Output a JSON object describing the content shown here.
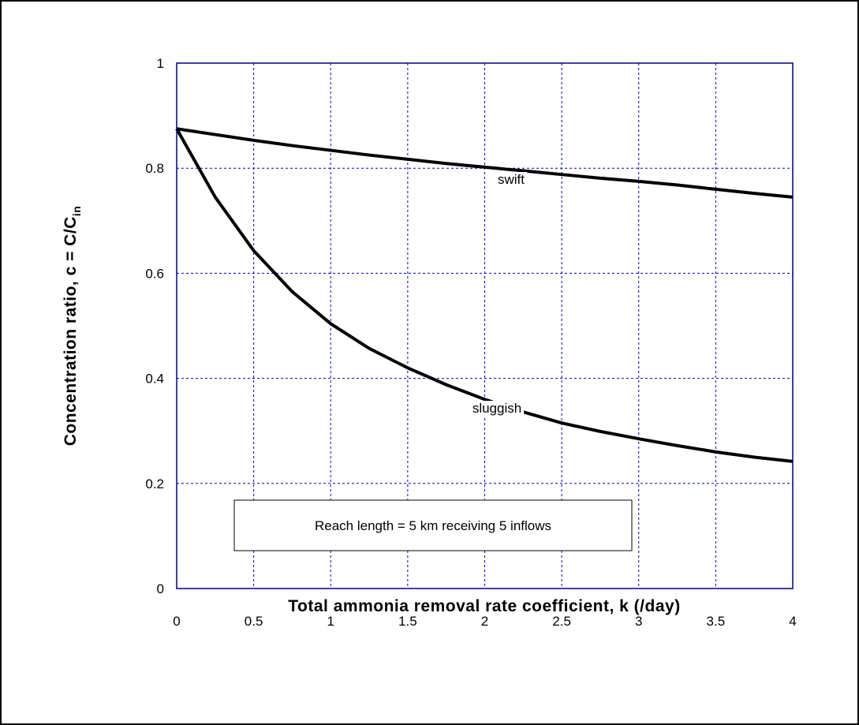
{
  "chart_data": {
    "type": "line",
    "x_label": "Total ammonia removal rate coefficient, k (/day)",
    "y_label": "Concentration ratio, c = C/C",
    "y_label_subscript": "in",
    "annotation": "Reach length = 5 km receiving 5 inflows",
    "x": [
      0,
      0.25,
      0.5,
      0.75,
      1,
      1.25,
      1.5,
      1.75,
      2,
      2.25,
      2.5,
      2.75,
      3,
      3.25,
      3.5,
      3.75,
      4
    ],
    "series": [
      {
        "name": "swift",
        "color": "#000000",
        "values": [
          0.875,
          0.864,
          0.853,
          0.843,
          0.834,
          0.825,
          0.817,
          0.809,
          0.802,
          0.795,
          0.788,
          0.781,
          0.775,
          0.768,
          0.76,
          0.752,
          0.745
        ]
      },
      {
        "name": "sluggish",
        "color": "#000000",
        "values": [
          0.875,
          0.745,
          0.643,
          0.565,
          0.504,
          0.457,
          0.42,
          0.388,
          0.36,
          0.336,
          0.315,
          0.299,
          0.285,
          0.272,
          0.26,
          0.25,
          0.242
        ]
      }
    ],
    "xlim": [
      0,
      4
    ],
    "xticks": [
      0,
      0.5,
      1,
      1.5,
      2,
      2.5,
      3,
      3.5,
      4
    ],
    "ylim": [
      0,
      1
    ],
    "yticks": [
      0,
      0.2,
      0.4,
      0.6,
      0.8,
      1
    ],
    "grid": true,
    "grid_color": "#0000cc",
    "frame_color": "#000080"
  }
}
